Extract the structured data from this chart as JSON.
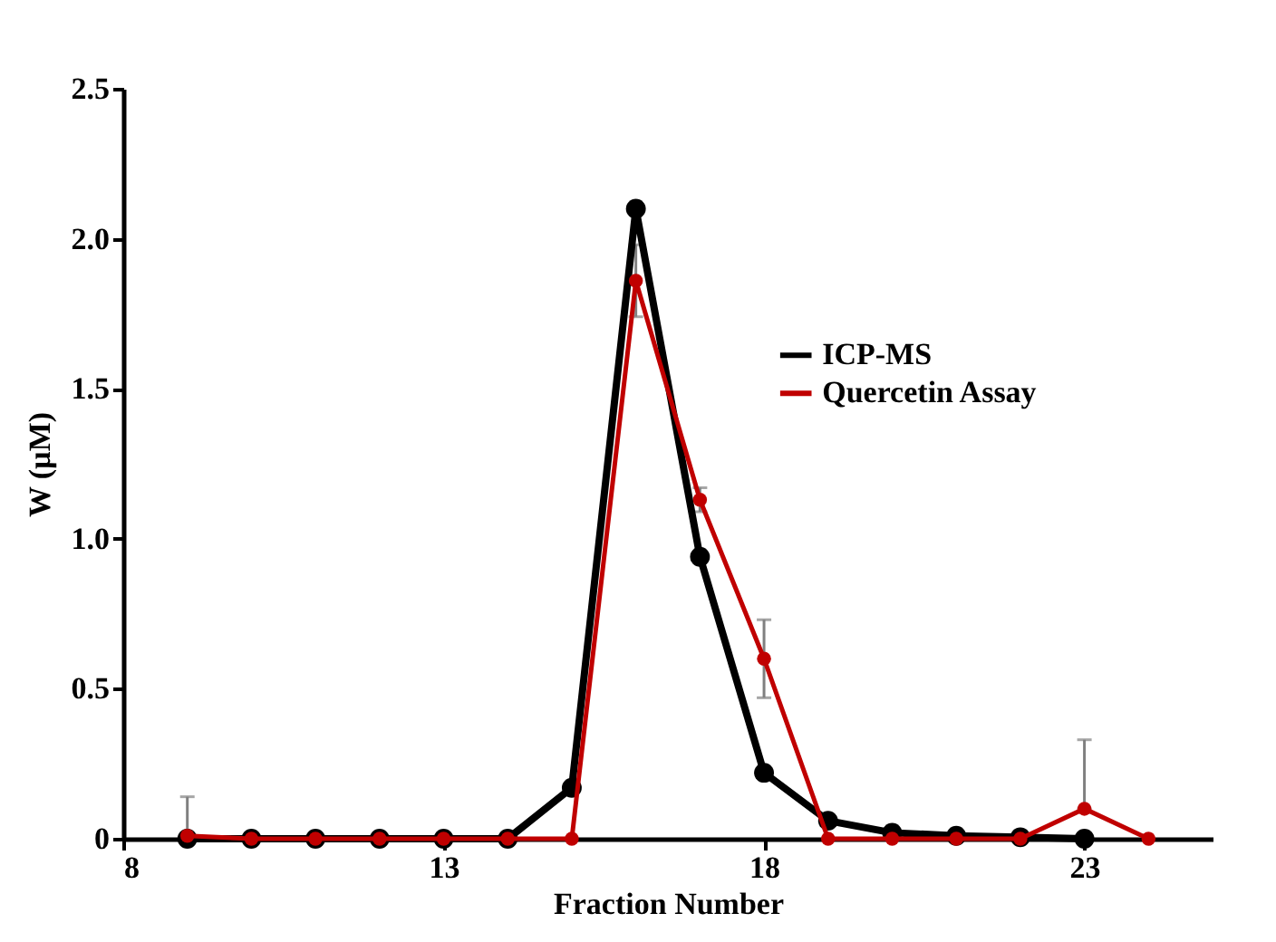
{
  "chart_data": {
    "type": "line",
    "xlabel": "Fraction Number",
    "ylabel": "W (µM)",
    "x": [
      9,
      10,
      11,
      12,
      13,
      14,
      15,
      16,
      17,
      18,
      19,
      20,
      21,
      22,
      23,
      24
    ],
    "series": [
      {
        "name": "ICP-MS",
        "color": "#000000",
        "x": [
          9,
          10,
          11,
          12,
          13,
          14,
          15,
          16,
          17,
          18,
          19,
          20,
          21,
          22,
          23
        ],
        "values": [
          0,
          0,
          0,
          0,
          0,
          0,
          0.17,
          2.1,
          0.94,
          0.22,
          0.06,
          0.02,
          0.01,
          0.005,
          0
        ]
      },
      {
        "name": "Quercetin Assay",
        "color": "#c00000",
        "values": [
          0.01,
          0,
          0,
          0,
          0,
          0,
          0,
          1.86,
          1.13,
          0.6,
          0,
          0,
          0,
          0,
          0.1,
          0
        ],
        "errors": [
          [
            0.01,
            0.14
          ],
          null,
          null,
          null,
          null,
          null,
          null,
          0.12,
          0.04,
          0.13,
          null,
          null,
          null,
          null,
          [
            0.1,
            0.33
          ],
          null
        ]
      }
    ],
    "xlim": [
      8,
      25
    ],
    "xticks": [
      8,
      13,
      18,
      23
    ],
    "ylim": [
      0,
      2.5
    ],
    "yticks": [
      0,
      {
        "value": 0.5,
        "label": "0.5"
      },
      {
        "value": 1,
        "label": "1.0"
      },
      {
        "value": 1.5,
        "label": "1.5"
      },
      {
        "value": 2,
        "label": "2.0"
      },
      {
        "value": 2.5,
        "label": "2.5"
      }
    ],
    "grid": false,
    "legend": "right",
    "marker": "circle",
    "line_style": "solid"
  }
}
